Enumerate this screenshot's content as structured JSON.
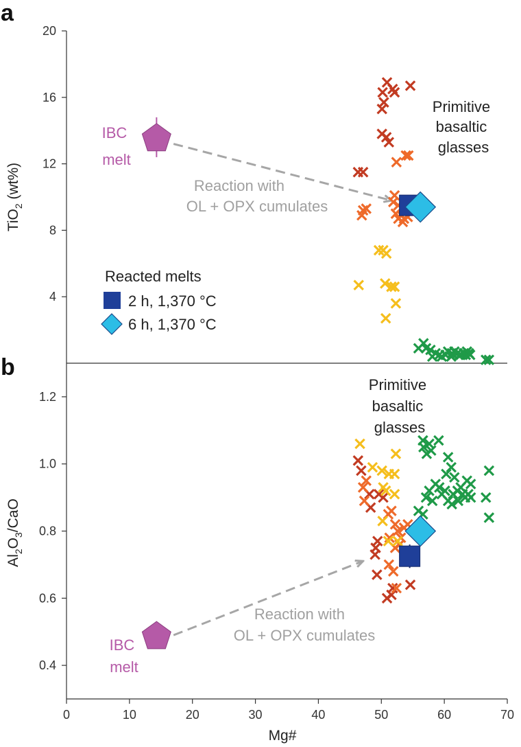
{
  "figure": {
    "x_axis_label": "Mg#",
    "x_ticks": [
      "0",
      "10",
      "20",
      "30",
      "40",
      "50",
      "60",
      "70"
    ],
    "xlim": [
      0,
      70
    ]
  },
  "chart_data": [
    {
      "panel": "a",
      "type": "scatter",
      "ylabel_main": "TiO",
      "ylabel_sub": "2",
      "ylabel_tail": " (wt%)",
      "ylim": [
        0,
        20
      ],
      "y_ticks": [
        4,
        8,
        12,
        16,
        20
      ],
      "y_tick_labels": [
        "4",
        "8",
        "12",
        "16",
        "20"
      ],
      "annotations": {
        "glasses_title": [
          "Primitive",
          "basaltic",
          "glasses"
        ],
        "reaction": [
          "Reaction with",
          "OL + OPX cumulates"
        ],
        "ibc": [
          "IBC",
          "melt"
        ]
      },
      "legend": {
        "title": "Reacted melts",
        "items": [
          "2 h, 1,370 °C",
          "6 h, 1,370 °C"
        ]
      },
      "ibc_melt": {
        "x": 14.3,
        "y": 13.6,
        "yerr": [
          12.4,
          14.8
        ]
      },
      "reacted_2h": {
        "x": 54.5,
        "y": 9.5
      },
      "reacted_6h": {
        "x": 56.2,
        "y": 9.4
      },
      "arrow": {
        "from": [
          17,
          13.2
        ],
        "to": [
          51.5,
          9.8
        ]
      },
      "series": [
        {
          "name": "dark red glasses",
          "color": "#c23b22",
          "points": [
            [
              50.9,
              16.9
            ],
            [
              51.8,
              16.5
            ],
            [
              50.2,
              16.3
            ],
            [
              52.1,
              16.3
            ],
            [
              54.6,
              16.7
            ],
            [
              50.4,
              15.7
            ],
            [
              50.1,
              15.3
            ],
            [
              50.1,
              13.8
            ],
            [
              50.8,
              13.6
            ],
            [
              51.2,
              13.3
            ],
            [
              46.3,
              11.5
            ],
            [
              47.1,
              11.5
            ]
          ]
        },
        {
          "name": "orange glasses",
          "color": "#ee6a2a",
          "points": [
            [
              53.9,
              12.5
            ],
            [
              54.3,
              12.5
            ],
            [
              52.4,
              12.1
            ],
            [
              52.1,
              10.1
            ],
            [
              51.9,
              9.7
            ],
            [
              52.7,
              9.5
            ],
            [
              47.1,
              9.2
            ],
            [
              47.6,
              9.3
            ],
            [
              46.9,
              8.9
            ],
            [
              52.3,
              9.0
            ],
            [
              53.2,
              8.9
            ],
            [
              53.6,
              8.7
            ],
            [
              54.2,
              8.8
            ],
            [
              52.7,
              8.7
            ],
            [
              53.4,
              8.5
            ]
          ]
        },
        {
          "name": "yellow glasses",
          "color": "#f5be1d",
          "points": [
            [
              49.6,
              6.8
            ],
            [
              50.3,
              6.8
            ],
            [
              50.8,
              6.6
            ],
            [
              46.4,
              4.7
            ],
            [
              50.6,
              4.8
            ],
            [
              51.6,
              4.6
            ],
            [
              52.1,
              4.6
            ],
            [
              52.3,
              3.6
            ],
            [
              50.7,
              2.7
            ]
          ]
        },
        {
          "name": "green glasses",
          "color": "#1f9a48",
          "points": [
            [
              56.7,
              1.2
            ],
            [
              57.1,
              0.9
            ],
            [
              57.8,
              0.8
            ],
            [
              55.9,
              0.9
            ],
            [
              58.6,
              0.6
            ],
            [
              59.2,
              0.5
            ],
            [
              60.6,
              0.7
            ],
            [
              61.2,
              0.6
            ],
            [
              61.6,
              0.7
            ],
            [
              62.1,
              0.6
            ],
            [
              62.6,
              0.5
            ],
            [
              63.1,
              0.6
            ],
            [
              63.6,
              0.7
            ],
            [
              63.4,
              0.5
            ],
            [
              62.4,
              0.5
            ],
            [
              61.1,
              0.4
            ],
            [
              60.2,
              0.5
            ],
            [
              59.6,
              0.4
            ],
            [
              58.1,
              0.4
            ],
            [
              64.1,
              0.5
            ],
            [
              63.9,
              0.6
            ],
            [
              66.6,
              0.2
            ],
            [
              67.1,
              0.2
            ]
          ]
        }
      ]
    },
    {
      "panel": "b",
      "type": "scatter",
      "ylabel_parts": [
        "Al",
        "2",
        "O",
        "3",
        "/CaO"
      ],
      "ylim": [
        0.3,
        1.3
      ],
      "y_ticks": [
        0.4,
        0.6,
        0.8,
        1.0,
        1.2
      ],
      "y_tick_labels": [
        "0.4",
        "0.6",
        "0.8",
        "1.0",
        "1.2"
      ],
      "annotations": {
        "glasses_title": [
          "Primitive",
          "basaltic",
          "glasses"
        ],
        "reaction": [
          "Reaction with",
          "OL + OPX cumulates"
        ],
        "ibc": [
          "IBC",
          "melt"
        ]
      },
      "ibc_melt": {
        "x": 14.3,
        "y": 0.49
      },
      "reacted_2h": {
        "x": 54.5,
        "y": 0.725,
        "yerr": [
          0.69,
          0.76
        ]
      },
      "reacted_6h": {
        "x": 56.2,
        "y": 0.8
      },
      "arrow": {
        "from": [
          17,
          0.49
        ],
        "to": [
          47,
          0.71
        ]
      },
      "series": [
        {
          "name": "dark red glasses",
          "color": "#c23b22",
          "points": [
            [
              46.3,
              1.01
            ],
            [
              46.8,
              0.98
            ],
            [
              49.6,
              0.91
            ],
            [
              50.3,
              0.9
            ],
            [
              48.1,
              0.91
            ],
            [
              48.3,
              0.87
            ],
            [
              49.4,
              0.77
            ],
            [
              49.1,
              0.75
            ],
            [
              49.0,
              0.73
            ],
            [
              49.3,
              0.67
            ],
            [
              51.8,
              0.63
            ],
            [
              50.9,
              0.6
            ],
            [
              51.6,
              0.61
            ],
            [
              54.6,
              0.64
            ]
          ]
        },
        {
          "name": "orange glasses",
          "color": "#ee6a2a",
          "points": [
            [
              47.1,
              0.93
            ],
            [
              47.6,
              0.95
            ],
            [
              47.3,
              0.89
            ],
            [
              51.6,
              0.86
            ],
            [
              51.1,
              0.85
            ],
            [
              52.2,
              0.82
            ],
            [
              52.6,
              0.8
            ],
            [
              53.1,
              0.78
            ],
            [
              53.6,
              0.81
            ],
            [
              54.2,
              0.82
            ],
            [
              51.3,
              0.78
            ],
            [
              52.2,
              0.75
            ],
            [
              52.9,
              0.76
            ],
            [
              51.2,
              0.7
            ],
            [
              51.9,
              0.68
            ],
            [
              52.4,
              0.63
            ]
          ]
        },
        {
          "name": "yellow glasses",
          "color": "#f5be1d",
          "points": [
            [
              46.6,
              1.06
            ],
            [
              52.3,
              1.03
            ],
            [
              48.6,
              0.99
            ],
            [
              50.1,
              0.98
            ],
            [
              51.2,
              0.97
            ],
            [
              52.1,
              0.97
            ],
            [
              50.3,
              0.93
            ],
            [
              50.7,
              0.92
            ],
            [
              52.1,
              0.91
            ],
            [
              50.2,
              0.83
            ],
            [
              52.6,
              0.77
            ],
            [
              51.1,
              0.77
            ]
          ]
        },
        {
          "name": "green glasses",
          "color": "#1f9a48",
          "points": [
            [
              56.6,
              1.07
            ],
            [
              57.6,
              1.06
            ],
            [
              59.1,
              1.07
            ],
            [
              56.7,
              1.05
            ],
            [
              57.9,
              1.04
            ],
            [
              57.2,
              1.03
            ],
            [
              60.6,
              1.02
            ],
            [
              61.1,
              0.99
            ],
            [
              60.3,
              0.97
            ],
            [
              61.6,
              0.96
            ],
            [
              67.1,
              0.98
            ],
            [
              58.6,
              0.94
            ],
            [
              59.2,
              0.93
            ],
            [
              62.6,
              0.93
            ],
            [
              63.6,
              0.95
            ],
            [
              64.2,
              0.94
            ],
            [
              57.6,
              0.92
            ],
            [
              59.6,
              0.91
            ],
            [
              60.1,
              0.92
            ],
            [
              61.4,
              0.91
            ],
            [
              62.1,
              0.92
            ],
            [
              62.9,
              0.91
            ],
            [
              63.3,
              0.9
            ],
            [
              63.8,
              0.91
            ],
            [
              60.6,
              0.89
            ],
            [
              61.2,
              0.88
            ],
            [
              62.2,
              0.89
            ],
            [
              64.2,
              0.9
            ],
            [
              57.1,
              0.9
            ],
            [
              58.1,
              0.89
            ],
            [
              55.9,
              0.86
            ],
            [
              56.6,
              0.85
            ],
            [
              66.6,
              0.9
            ],
            [
              67.1,
              0.84
            ]
          ]
        }
      ]
    }
  ]
}
